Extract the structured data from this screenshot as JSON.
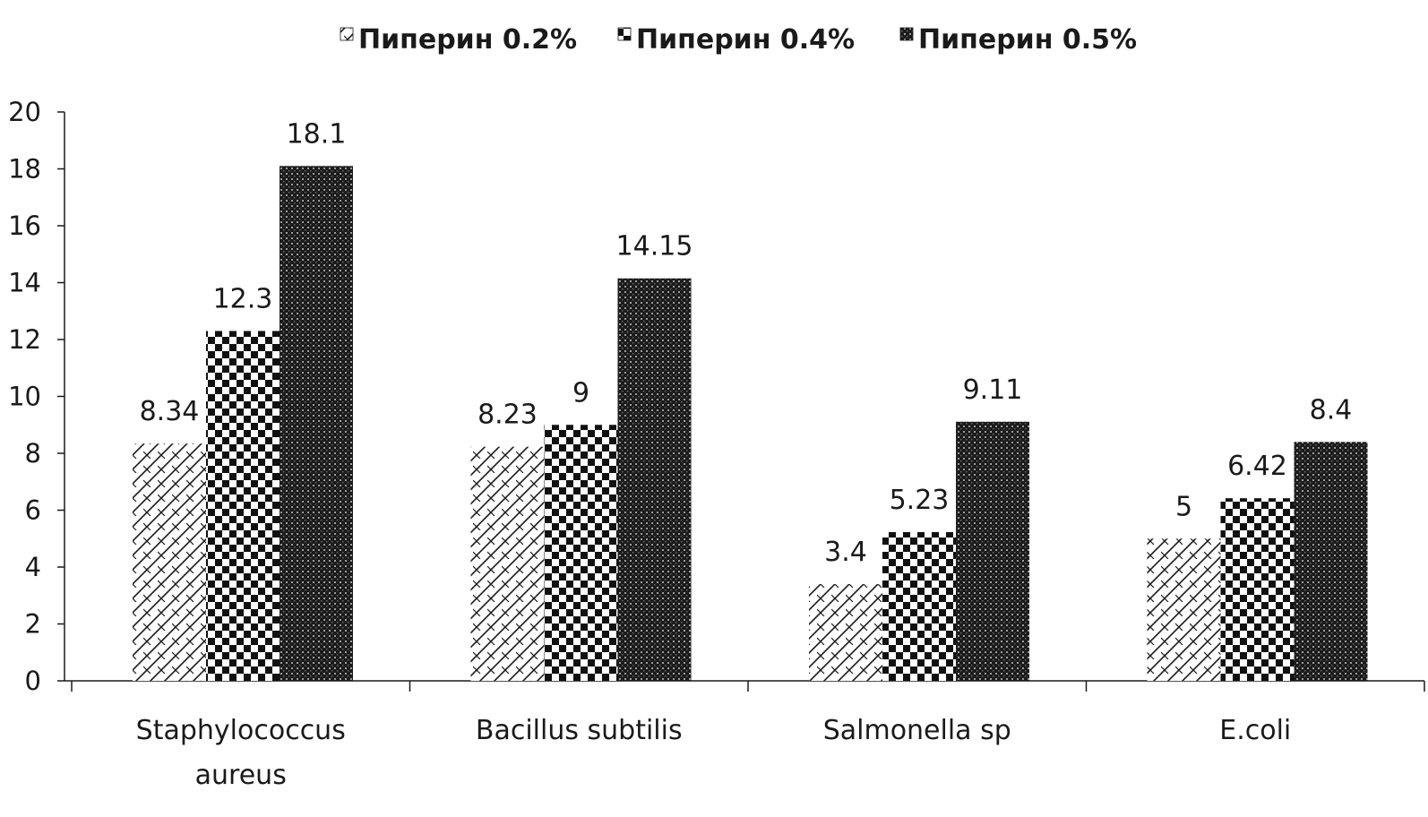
{
  "chart_data": {
    "type": "bar",
    "categories": [
      [
        "Staphylococcus",
        "aureus"
      ],
      [
        "Bacillus subtilis"
      ],
      [
        "Salmonella sp"
      ],
      [
        "E.coli"
      ]
    ],
    "series": [
      {
        "name": "Пиперин 0.2%",
        "values": [
          8.34,
          8.23,
          3.4,
          5
        ],
        "labels": [
          "8.34",
          "8.23",
          "3.4",
          "5"
        ],
        "pattern": "zigzag"
      },
      {
        "name": "Пиперин 0.4%",
        "values": [
          12.3,
          9,
          5.23,
          6.42
        ],
        "labels": [
          "12.3",
          "9",
          "5.23",
          "6.42"
        ],
        "pattern": "checker"
      },
      {
        "name": "Пиперин 0.5%",
        "values": [
          18.1,
          14.15,
          9.11,
          8.4
        ],
        "labels": [
          "18.1",
          "14.15",
          "9.11",
          "8.4"
        ],
        "pattern": "dense"
      }
    ],
    "ylim": [
      0,
      20
    ],
    "yticks": [
      0,
      2,
      4,
      6,
      8,
      10,
      12,
      14,
      16,
      18,
      20
    ],
    "legend_position": "top-center",
    "grid": false,
    "colors": {
      "ink": "#1a1a1a",
      "background": "#ffffff"
    }
  }
}
